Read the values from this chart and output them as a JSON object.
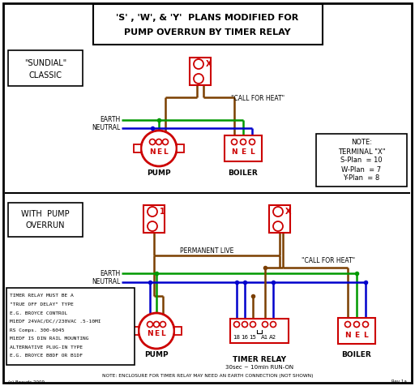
{
  "title_line1": "'S' , 'W', & 'Y'  PLANS MODIFIED FOR",
  "title_line2": "PUMP OVERRUN BY TIMER RELAY",
  "bg_color": "#ffffff",
  "border_color": "#000000",
  "red": "#cc0000",
  "green": "#009900",
  "blue": "#0000cc",
  "brown": "#7B3F00",
  "bottom_note": "NOTE: ENCLOSURE FOR TIMER RELAY MAY NEED AN EARTH CONNECTION (NOT SHOWN)",
  "call_for_heat": "\"CALL FOR HEAT\"",
  "permanent_live": "PERMANENT LIVE",
  "earth_label": "EARTH",
  "neutral_label": "NEUTRAL",
  "pump_label": "PUMP",
  "boiler_label": "BOILER",
  "timer_relay_label": "TIMER RELAY",
  "timer_relay_sub": "30sec ~ 10min RUN-ON",
  "rev_label": "Rev 1a",
  "copyright_label": "(c) Beaydc 2009"
}
